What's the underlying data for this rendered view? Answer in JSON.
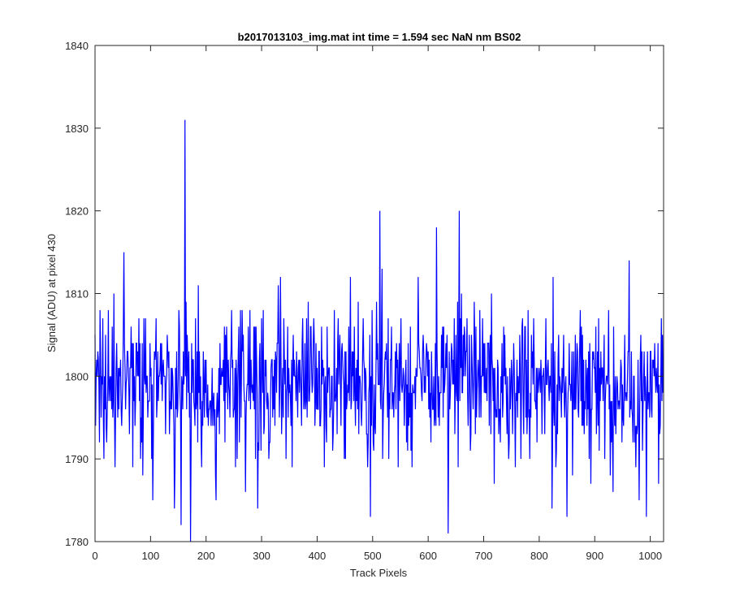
{
  "chart_data": {
    "type": "line",
    "title": "b2017013103_img.mat int time = 1.594 sec  NaN nm BS02",
    "xlabel": "Track Pixels",
    "ylabel": "Signal (ADU) at pixel 430",
    "xlim": [
      0,
      1024
    ],
    "ylim": [
      1780,
      1840
    ],
    "xticks": [
      0,
      100,
      200,
      300,
      400,
      500,
      600,
      700,
      800,
      900,
      1000
    ],
    "yticks": [
      1780,
      1790,
      1800,
      1810,
      1820,
      1830,
      1840
    ],
    "grid": false,
    "legend": "none",
    "line_color": "#0000ff",
    "sample_count": 1024,
    "y_mean": 1799,
    "y_std": 4.5,
    "y_range": [
      1780,
      1831
    ],
    "notable_points": [
      {
        "x": 52,
        "y": 1815
      },
      {
        "x": 143,
        "y": 1784
      },
      {
        "x": 155,
        "y": 1782
      },
      {
        "x": 162,
        "y": 1831
      },
      {
        "x": 172,
        "y": 1780
      },
      {
        "x": 218,
        "y": 1785
      },
      {
        "x": 293,
        "y": 1784
      },
      {
        "x": 496,
        "y": 1783
      },
      {
        "x": 513,
        "y": 1820
      },
      {
        "x": 517,
        "y": 1813
      },
      {
        "x": 615,
        "y": 1818
      },
      {
        "x": 636,
        "y": 1781
      },
      {
        "x": 656,
        "y": 1820
      },
      {
        "x": 823,
        "y": 1784
      },
      {
        "x": 850,
        "y": 1783
      },
      {
        "x": 962,
        "y": 1814
      },
      {
        "x": 980,
        "y": 1785
      },
      {
        "x": 993,
        "y": 1783
      }
    ]
  }
}
